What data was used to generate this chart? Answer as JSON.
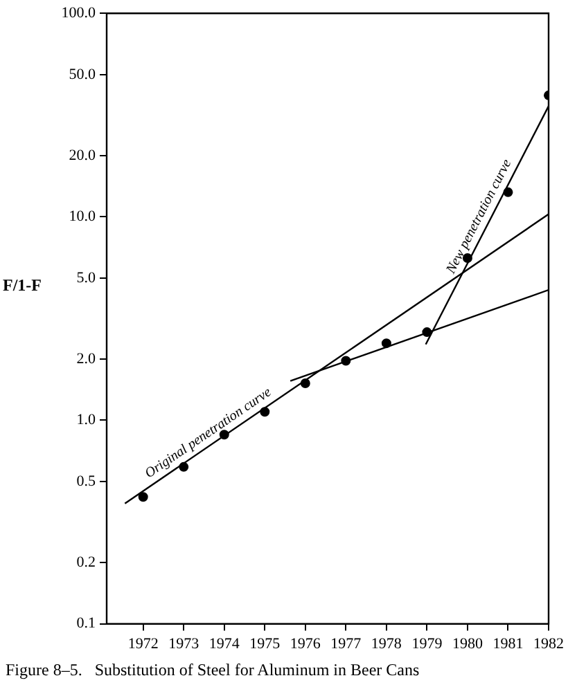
{
  "chart_data": {
    "type": "scatter",
    "title": "Figure 8–5.   Substitution of Steel for Aluminum in Beer Cans",
    "ylabel": "F/1-F",
    "log": "y",
    "x": [
      1972,
      1973,
      1974,
      1975,
      1976,
      1977,
      1978,
      1979,
      1980,
      1981,
      1982
    ],
    "series": [
      {
        "color": "#000000",
        "marker": "circle",
        "values": [
          0.42,
          0.59,
          0.85,
          1.1,
          1.52,
          1.96,
          2.39,
          2.71,
          6.27,
          13.2,
          39.5
        ]
      },
      {
        "type": "line",
        "name": "Original penetration curve",
        "color": "#000000",
        "marker": "none",
        "x": [
          1971.55,
          1982
        ],
        "values": [
          0.39,
          10.3
        ]
      },
      {
        "type": "line",
        "color": "#000000",
        "marker": "none",
        "x": [
          1975.63,
          1982
        ],
        "values": [
          1.56,
          4.37
        ]
      },
      {
        "type": "line",
        "name": "New penetration curve",
        "color": "#000000",
        "marker": "none",
        "x": [
          1978.97,
          1982
        ],
        "values": [
          2.36,
          35
        ]
      }
    ],
    "xlim": [
      1971.1,
      1982
    ],
    "xticks": [
      1972,
      1973,
      1974,
      1975,
      1976,
      1977,
      1978,
      1979,
      1980,
      1981,
      1982
    ],
    "ylim": [
      0.1,
      100
    ],
    "yticks": [
      0.1,
      0.2,
      0.5,
      {
        "value": 1,
        "label": "1.0"
      },
      {
        "value": 2,
        "label": "2.0"
      },
      {
        "value": 5,
        "label": "5.0"
      },
      {
        "value": 10,
        "label": "10.0"
      },
      {
        "value": 20,
        "label": "20.0"
      },
      {
        "value": 50,
        "label": "50.0"
      },
      {
        "value": 100,
        "label": "100.0"
      }
    ]
  }
}
